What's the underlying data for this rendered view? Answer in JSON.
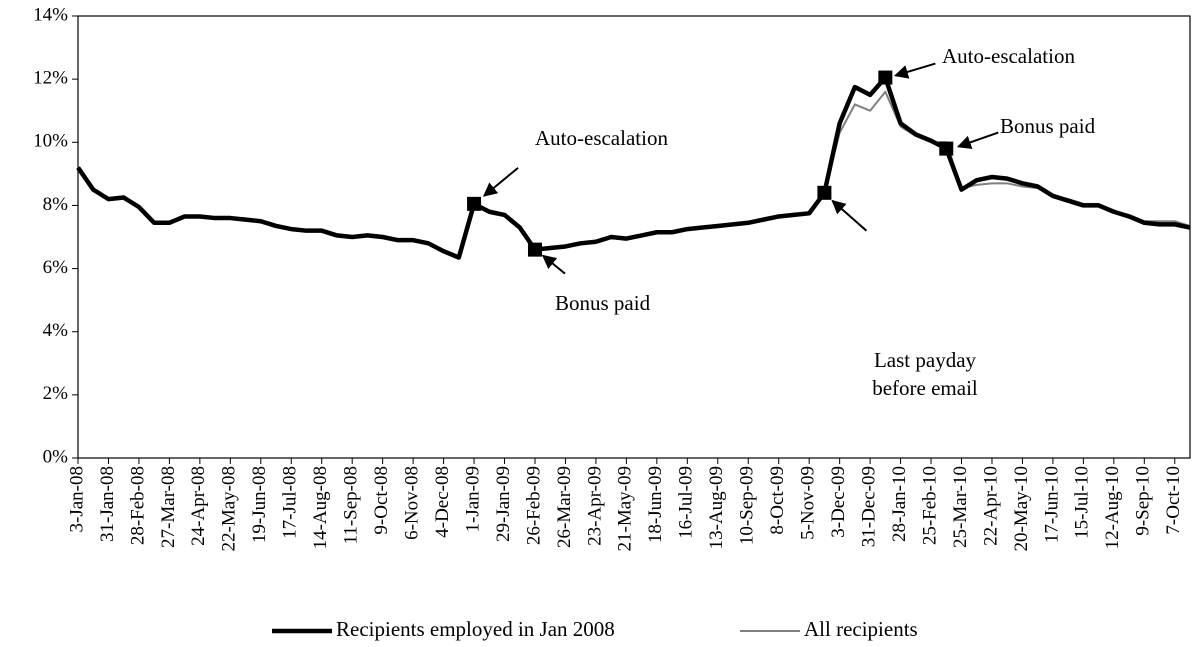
{
  "chart_data": {
    "type": "line",
    "categories": [
      "3-Jan-08",
      null,
      "31-Jan-08",
      null,
      "28-Feb-08",
      null,
      "27-Mar-08",
      null,
      "24-Apr-08",
      null,
      "22-May-08",
      null,
      "19-Jun-08",
      null,
      "17-Jul-08",
      null,
      "14-Aug-08",
      null,
      "11-Sep-08",
      null,
      "9-Oct-08",
      null,
      "6-Nov-08",
      null,
      "4-Dec-08",
      null,
      "1-Jan-09",
      null,
      "29-Jan-09",
      null,
      "26-Feb-09",
      null,
      "26-Mar-09",
      null,
      "23-Apr-09",
      null,
      "21-May-09",
      null,
      "18-Jun-09",
      null,
      "16-Jul-09",
      null,
      "13-Aug-09",
      null,
      "10-Sep-09",
      null,
      "8-Oct-09",
      null,
      "5-Nov-09",
      null,
      "3-Dec-09",
      null,
      "31-Dec-09",
      null,
      "28-Jan-10",
      null,
      "25-Feb-10",
      null,
      "25-Mar-10",
      null,
      "22-Apr-10",
      null,
      "20-May-10",
      null,
      "17-Jun-10",
      null,
      "15-Jul-10",
      null,
      "12-Aug-10",
      null,
      "9-Sep-10",
      null,
      "7-Oct-10",
      null
    ],
    "series": [
      {
        "name": "Recipients employed in Jan 2008",
        "color": "#000000",
        "values": [
          9.2,
          8.5,
          8.2,
          8.25,
          7.95,
          7.45,
          7.45,
          7.65,
          7.65,
          7.6,
          7.6,
          7.55,
          7.5,
          7.35,
          7.25,
          7.2,
          7.2,
          7.05,
          7.0,
          7.05,
          7.0,
          6.9,
          6.9,
          6.8,
          6.55,
          6.35,
          8.05,
          7.8,
          7.7,
          7.3,
          6.6,
          6.65,
          6.7,
          6.8,
          6.85,
          7.0,
          6.95,
          7.05,
          7.15,
          7.15,
          7.25,
          7.3,
          7.35,
          7.4,
          7.45,
          7.55,
          7.65,
          7.7,
          7.75,
          8.4,
          10.6,
          11.75,
          11.5,
          12.05,
          10.6,
          10.25,
          10.05,
          9.8,
          8.5,
          8.8,
          8.9,
          8.85,
          8.7,
          8.6,
          8.3,
          8.15,
          8.0,
          8.0,
          7.8,
          7.65,
          7.45,
          7.4,
          7.4,
          7.3
        ]
      },
      {
        "name": "All recipients",
        "color": "#808080",
        "values": [
          9.2,
          8.5,
          8.2,
          8.25,
          7.95,
          7.45,
          7.45,
          7.65,
          7.65,
          7.6,
          7.6,
          7.55,
          7.5,
          7.35,
          7.25,
          7.2,
          7.2,
          7.05,
          7.0,
          7.05,
          7.0,
          6.9,
          6.9,
          6.8,
          6.55,
          6.35,
          8.05,
          7.8,
          7.7,
          7.3,
          6.6,
          6.65,
          6.7,
          6.8,
          6.85,
          7.0,
          6.95,
          7.05,
          7.15,
          7.15,
          7.25,
          7.3,
          7.35,
          7.4,
          7.45,
          7.55,
          7.65,
          7.7,
          7.75,
          8.4,
          10.3,
          11.2,
          11.0,
          11.6,
          10.5,
          10.2,
          10.0,
          10.0,
          8.55,
          8.65,
          8.7,
          8.7,
          8.6,
          8.55,
          8.3,
          8.2,
          8.05,
          8.05,
          7.8,
          7.7,
          7.5,
          7.5,
          7.5,
          7.35
        ]
      }
    ],
    "ylim": [
      0,
      14
    ],
    "yticks": [
      {
        "value": 0,
        "label": "0%"
      },
      {
        "value": 2,
        "label": "2%"
      },
      {
        "value": 4,
        "label": "4%"
      },
      {
        "value": 6,
        "label": "6%"
      },
      {
        "value": 8,
        "label": "8%"
      },
      {
        "value": 10,
        "label": "10%"
      },
      {
        "value": 12,
        "label": "12%"
      },
      {
        "value": 14,
        "label": "14%"
      }
    ],
    "grid": false,
    "legend": "bottom",
    "annotations": [
      {
        "lines": [
          "Auto-escalation"
        ]
      },
      {
        "lines": [
          "Bonus paid"
        ]
      },
      {
        "lines": [
          "Last payday",
          "before email"
        ]
      },
      {
        "lines": [
          "Auto-escalation"
        ]
      },
      {
        "lines": [
          "Bonus paid"
        ]
      }
    ]
  }
}
